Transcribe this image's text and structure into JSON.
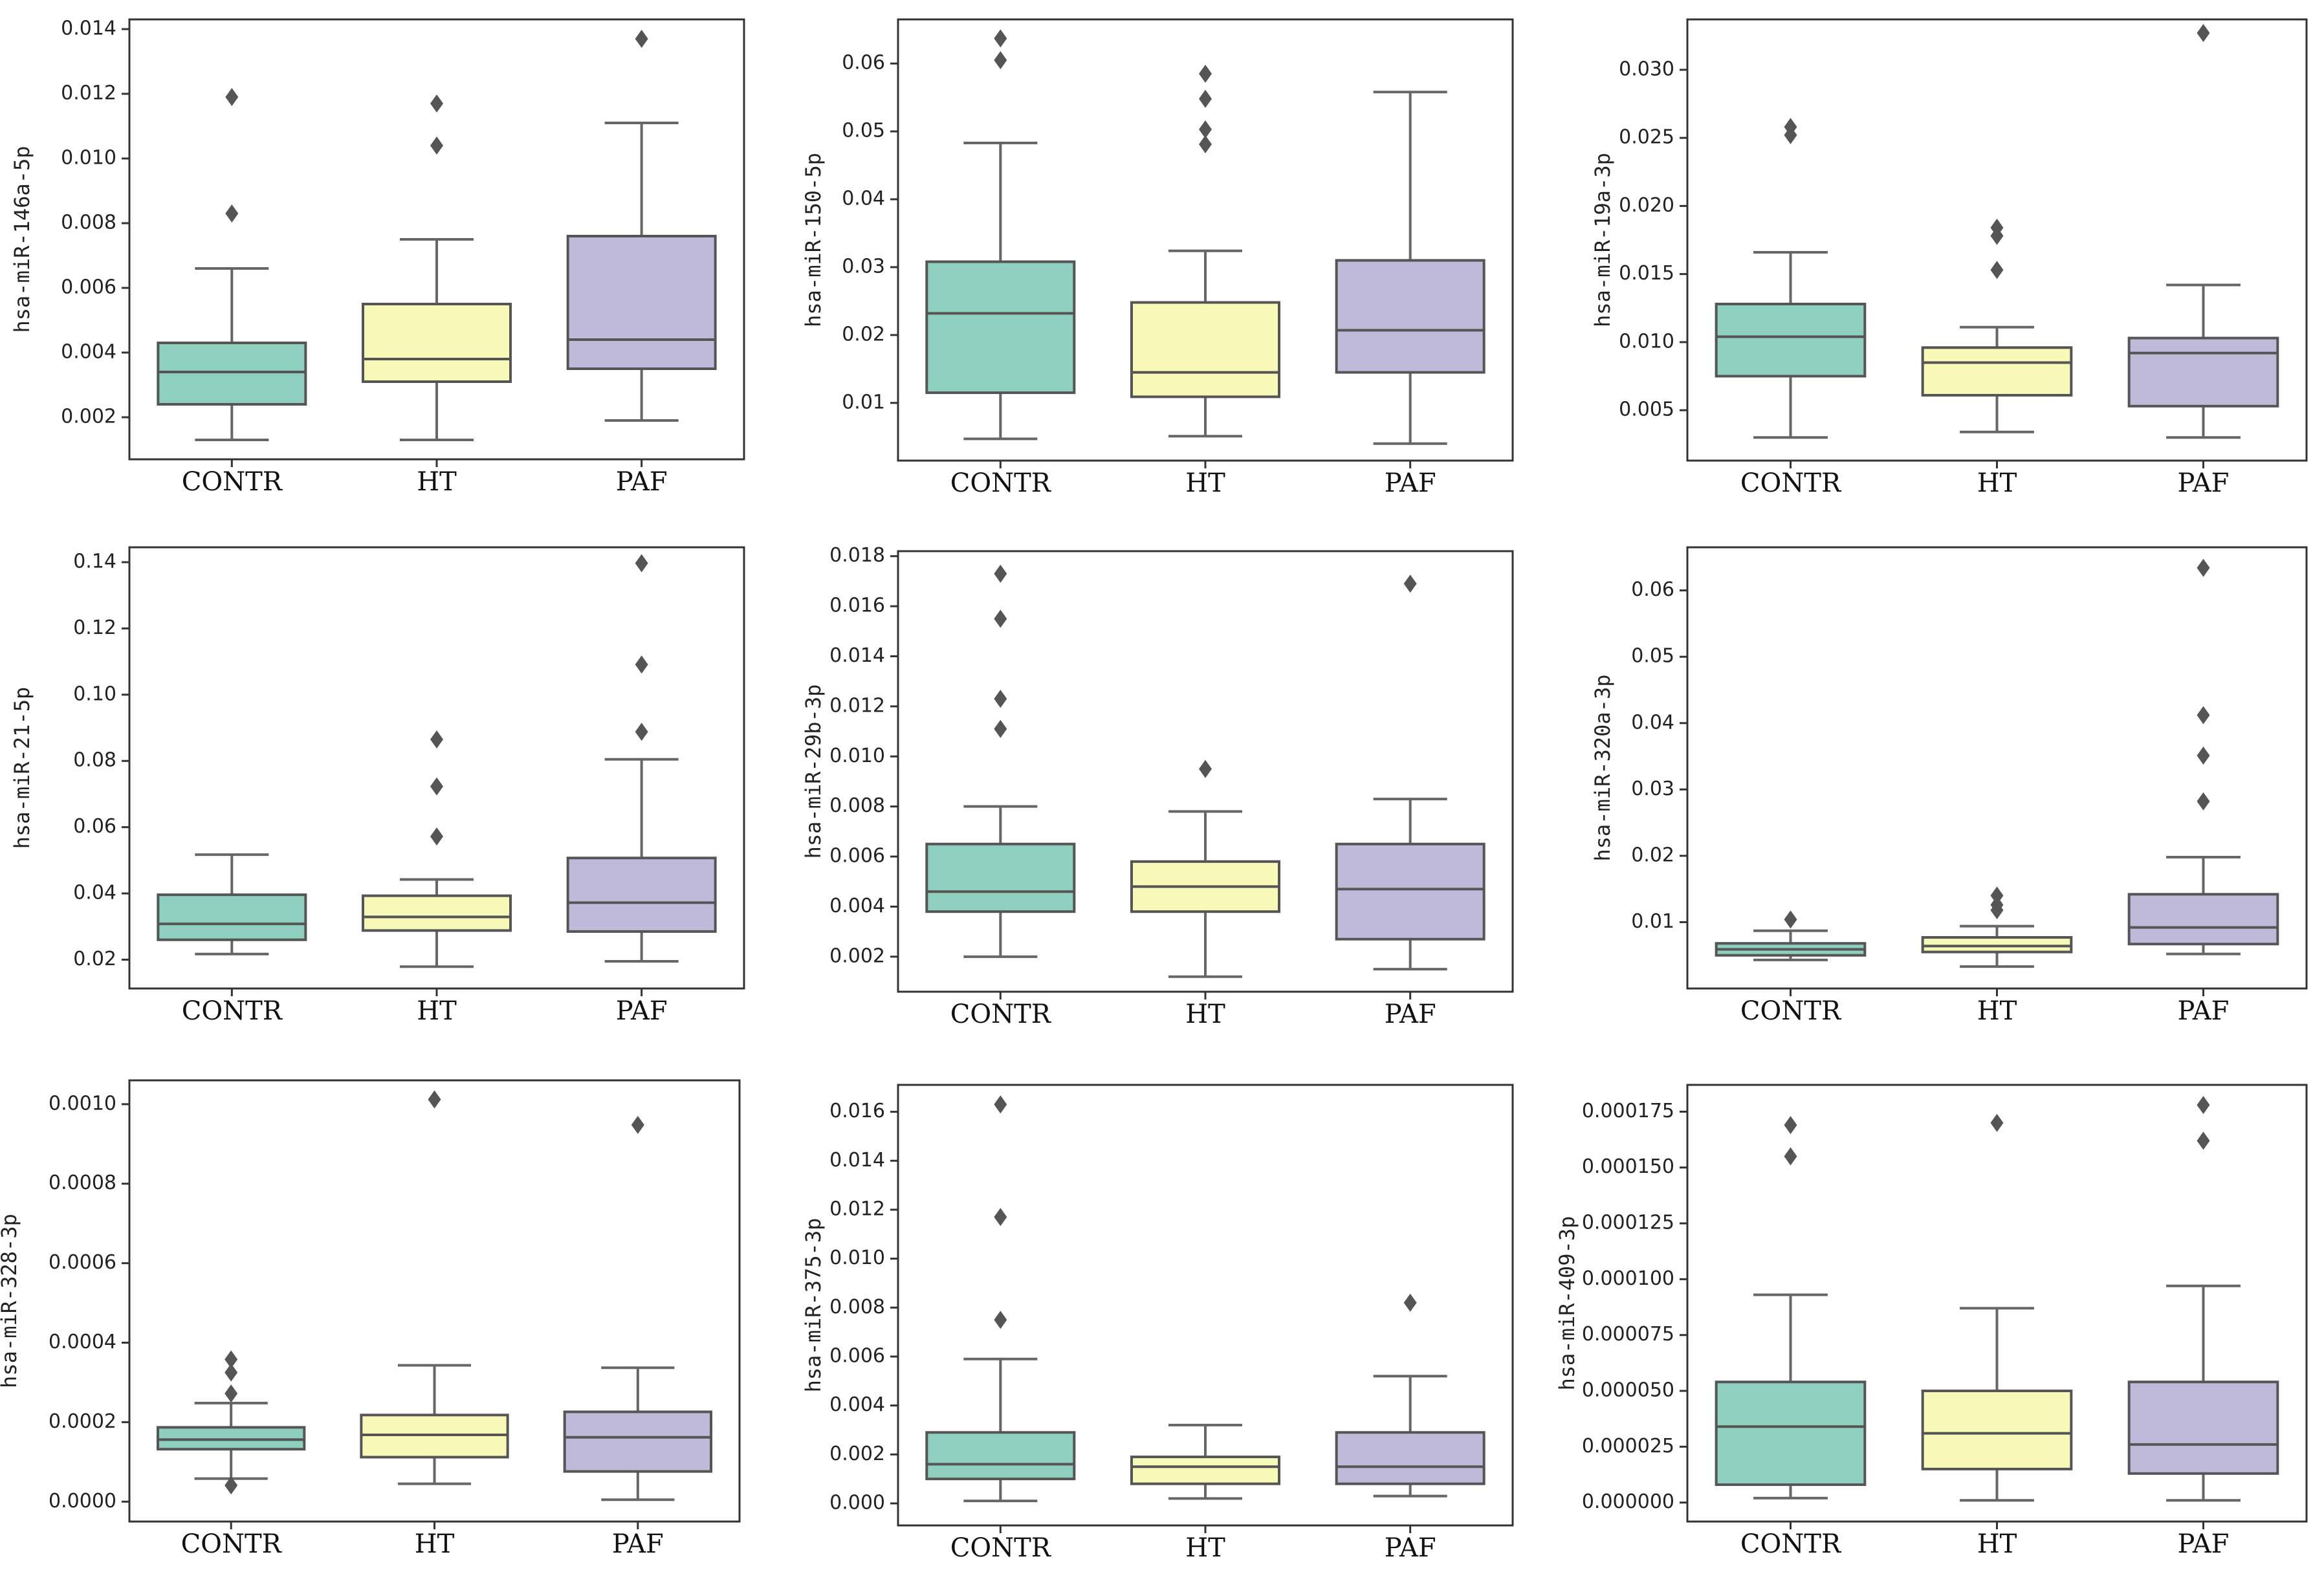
{
  "chart_data": [
    {
      "type": "box",
      "ylabel": "hsa-miR-146a-5p",
      "categories": [
        "CONTR",
        "HT",
        "PAF"
      ],
      "ylim": [
        0.0007,
        0.0143
      ],
      "yticks": [
        "0.002",
        "0.004",
        "0.006",
        "0.008",
        "0.010",
        "0.012",
        "0.014"
      ],
      "boxes": [
        {
          "low": 0.0013,
          "q1": 0.0024,
          "median": 0.0034,
          "q3": 0.0043,
          "high": 0.0066,
          "outliers": [
            0.0083,
            0.0119
          ]
        },
        {
          "low": 0.0013,
          "q1": 0.0031,
          "median": 0.0038,
          "q3": 0.0055,
          "high": 0.0075,
          "outliers": [
            0.0104,
            0.0117
          ]
        },
        {
          "low": 0.0019,
          "q1": 0.0035,
          "median": 0.0044,
          "q3": 0.0076,
          "high": 0.0111,
          "outliers": [
            0.0137
          ]
        }
      ]
    },
    {
      "type": "box",
      "ylabel": "hsa-miR-150-5p",
      "categories": [
        "CONTR",
        "HT",
        "PAF"
      ],
      "ylim": [
        0.0015,
        0.0665
      ],
      "yticks": [
        "0.01",
        "0.02",
        "0.03",
        "0.04",
        "0.05",
        "0.06"
      ],
      "boxes": [
        {
          "low": 0.0047,
          "q1": 0.0115,
          "median": 0.0232,
          "q3": 0.0308,
          "high": 0.0483,
          "outliers": [
            0.0605,
            0.0637
          ]
        },
        {
          "low": 0.0051,
          "q1": 0.0109,
          "median": 0.0145,
          "q3": 0.0248,
          "high": 0.0324,
          "outliers": [
            0.0481,
            0.0503,
            0.0548,
            0.0585
          ]
        },
        {
          "low": 0.004,
          "q1": 0.0145,
          "median": 0.0207,
          "q3": 0.031,
          "high": 0.0558,
          "outliers": []
        }
      ]
    },
    {
      "type": "box",
      "ylabel": "hsa-miR-19a-3p",
      "categories": [
        "CONTR",
        "HT",
        "PAF"
      ],
      "ylim": [
        0.0013,
        0.0337
      ],
      "yticks": [
        "0.005",
        "0.010",
        "0.015",
        "0.020",
        "0.025",
        "0.030"
      ],
      "boxes": [
        {
          "low": 0.003,
          "q1": 0.0075,
          "median": 0.0104,
          "q3": 0.0128,
          "high": 0.0166,
          "outliers": [
            0.0252,
            0.0258
          ]
        },
        {
          "low": 0.0034,
          "q1": 0.0061,
          "median": 0.0085,
          "q3": 0.0096,
          "high": 0.0111,
          "outliers": [
            0.0153,
            0.0178,
            0.0184
          ]
        },
        {
          "low": 0.003,
          "q1": 0.0053,
          "median": 0.0092,
          "q3": 0.0103,
          "high": 0.0142,
          "outliers": [
            0.0327
          ]
        }
      ]
    },
    {
      "type": "box",
      "ylabel": "hsa-miR-21-5p",
      "categories": [
        "CONTR",
        "HT",
        "PAF"
      ],
      "ylim": [
        0.0113,
        0.1445
      ],
      "yticks": [
        "0.02",
        "0.04",
        "0.06",
        "0.08",
        "0.10",
        "0.12",
        "0.14"
      ],
      "boxes": [
        {
          "low": 0.0217,
          "q1": 0.026,
          "median": 0.0308,
          "q3": 0.0396,
          "high": 0.0517,
          "outliers": []
        },
        {
          "low": 0.0179,
          "q1": 0.0288,
          "median": 0.0329,
          "q3": 0.0393,
          "high": 0.0442,
          "outliers": [
            0.0572,
            0.0723,
            0.0865
          ]
        },
        {
          "low": 0.0195,
          "q1": 0.0285,
          "median": 0.0372,
          "q3": 0.0507,
          "high": 0.0805,
          "outliers": [
            0.0888,
            0.1091,
            0.1397
          ]
        }
      ]
    },
    {
      "type": "box",
      "ylabel": "hsa-miR-29b-3p",
      "categories": [
        "CONTR",
        "HT",
        "PAF"
      ],
      "ylim": [
        0.0006,
        0.0182
      ],
      "yticks": [
        "0.002",
        "0.004",
        "0.006",
        "0.008",
        "0.010",
        "0.012",
        "0.014",
        "0.016",
        "0.018"
      ],
      "boxes": [
        {
          "low": 0.002,
          "q1": 0.0038,
          "median": 0.0046,
          "q3": 0.0065,
          "high": 0.008,
          "outliers": [
            0.0111,
            0.0123,
            0.0155,
            0.0173
          ]
        },
        {
          "low": 0.0012,
          "q1": 0.0038,
          "median": 0.0048,
          "q3": 0.0058,
          "high": 0.0078,
          "outliers": [
            0.0095
          ]
        },
        {
          "low": 0.0015,
          "q1": 0.0027,
          "median": 0.0047,
          "q3": 0.0065,
          "high": 0.0083,
          "outliers": [
            0.0169
          ]
        }
      ]
    },
    {
      "type": "box",
      "ylabel": "hsa-miR-320a-3p",
      "categories": [
        "CONTR",
        "HT",
        "PAF"
      ],
      "ylim": [
        0.0,
        0.0665
      ],
      "yticks": [
        "0.01",
        "0.02",
        "0.03",
        "0.04",
        "0.05",
        "0.06"
      ],
      "boxes": [
        {
          "low": 0.0043,
          "q1": 0.005,
          "median": 0.0059,
          "q3": 0.0068,
          "high": 0.0087,
          "outliers": [
            0.0104
          ]
        },
        {
          "low": 0.0033,
          "q1": 0.0055,
          "median": 0.0064,
          "q3": 0.0077,
          "high": 0.0094,
          "outliers": [
            0.0118,
            0.0126,
            0.014
          ]
        },
        {
          "low": 0.0052,
          "q1": 0.0067,
          "median": 0.0092,
          "q3": 0.0142,
          "high": 0.0198,
          "outliers": [
            0.0282,
            0.0351,
            0.0412,
            0.0634
          ]
        }
      ]
    },
    {
      "type": "box",
      "ylabel": "hsa-miR-328-3p",
      "categories": [
        "CONTR",
        "HT",
        "PAF"
      ],
      "ylim": [
        -5e-05,
        0.00106
      ],
      "yticks": [
        "0.0000",
        "0.0002",
        "0.0004",
        "0.0006",
        "0.0008",
        "0.0010"
      ],
      "boxes": [
        {
          "low": 5.8e-05,
          "q1": 0.000132,
          "median": 0.000156,
          "q3": 0.000187,
          "high": 0.000248,
          "outliers": [
            4.1e-05,
            0.000272,
            0.000325,
            0.000358
          ]
        },
        {
          "low": 4.5e-05,
          "q1": 0.000112,
          "median": 0.000168,
          "q3": 0.000218,
          "high": 0.000343,
          "outliers": [
            0.001012
          ]
        },
        {
          "low": 5e-06,
          "q1": 7.6e-05,
          "median": 0.000162,
          "q3": 0.000226,
          "high": 0.000337,
          "outliers": [
            0.000948
          ]
        }
      ]
    },
    {
      "type": "box",
      "ylabel": "hsa-miR-375-3p",
      "categories": [
        "CONTR",
        "HT",
        "PAF"
      ],
      "ylim": [
        -0.0009,
        0.0171
      ],
      "yticks": [
        "0.000",
        "0.002",
        "0.004",
        "0.006",
        "0.008",
        "0.010",
        "0.012",
        "0.014",
        "0.016"
      ],
      "boxes": [
        {
          "low": 0.0001,
          "q1": 0.001,
          "median": 0.0016,
          "q3": 0.0029,
          "high": 0.0059,
          "outliers": [
            0.0075,
            0.0117,
            0.0163
          ]
        },
        {
          "low": 0.0002,
          "q1": 0.0008,
          "median": 0.0015,
          "q3": 0.0019,
          "high": 0.0032,
          "outliers": []
        },
        {
          "low": 0.0003,
          "q1": 0.0008,
          "median": 0.0015,
          "q3": 0.0029,
          "high": 0.0052,
          "outliers": [
            0.0082
          ]
        }
      ]
    },
    {
      "type": "box",
      "ylabel": "hsa-miR-409-3p",
      "categories": [
        "CONTR",
        "HT",
        "PAF"
      ],
      "ylim": [
        -8.5e-06,
        0.000187
      ],
      "yticks": [
        "0.000000",
        "0.000025",
        "0.000050",
        "0.000075",
        "0.000100",
        "0.000125",
        "0.000150",
        "0.000175"
      ],
      "boxes": [
        {
          "low": 2e-06,
          "q1": 8e-06,
          "median": 3.4e-05,
          "q3": 5.4e-05,
          "high": 9.3e-05,
          "outliers": [
            0.000155,
            0.000169
          ]
        },
        {
          "low": 1e-06,
          "q1": 1.5e-05,
          "median": 3.1e-05,
          "q3": 5e-05,
          "high": 8.7e-05,
          "outliers": [
            0.00017
          ]
        },
        {
          "low": 1e-06,
          "q1": 1.3e-05,
          "median": 2.6e-05,
          "q3": 5.4e-05,
          "high": 9.7e-05,
          "outliers": [
            0.000162,
            0.000178
          ]
        }
      ]
    }
  ],
  "colors": {
    "CONTR": "#8ecfbf",
    "HT": "#f8f8b8",
    "PAF": "#bfbad9",
    "line": "#555555",
    "flier": "#555555",
    "frame": "#333333"
  }
}
